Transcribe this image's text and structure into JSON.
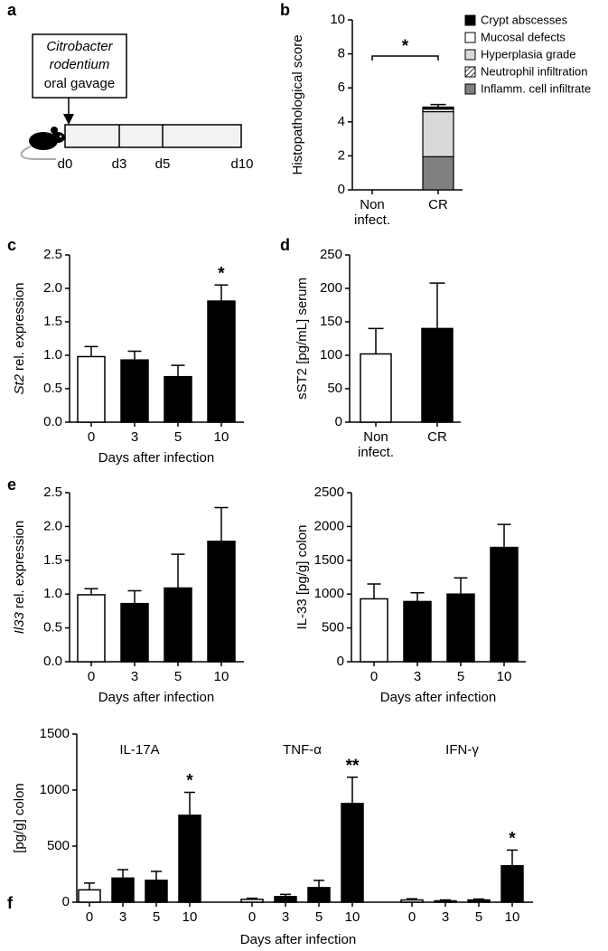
{
  "diagram": {
    "letter": "a",
    "box_italic": [
      "Citrobacter",
      "rodentium"
    ],
    "box_text": "oral gavage",
    "labels": [
      "d0",
      "d3",
      "d5",
      "d10"
    ]
  },
  "chart_data": [
    {
      "type": "stacked_bar",
      "letter": "b",
      "ylabel": "Histopathological score",
      "categories": [
        "Non infect.",
        "CR"
      ],
      "ylim": [
        0,
        10
      ],
      "yticks": [
        0,
        2,
        4,
        6,
        8,
        10
      ],
      "significance": "*",
      "series": [
        {
          "name": "Inflamm. cell infiltrate",
          "color": "#808080",
          "values": [
            0,
            1.95
          ],
          "errors": [
            null,
            0.4
          ]
        },
        {
          "name": "Neutrophil infiltration",
          "color": "#ffffff",
          "pattern": "hatch",
          "values": [
            0,
            0
          ]
        },
        {
          "name": "Hyperplasia grade",
          "color": "#d9d9d9",
          "values": [
            0,
            2.65
          ]
        },
        {
          "name": "Mucosal defects",
          "color": "#ffffff",
          "values": [
            0,
            0.15
          ]
        },
        {
          "name": "Crypt abscesses",
          "color": "#000000",
          "values": [
            0,
            0.12
          ],
          "errors": [
            null,
            0.15
          ]
        }
      ]
    },
    {
      "type": "bar",
      "letter": "c",
      "ylabel_gene": "St2",
      "ylabel": "rel. expression",
      "xlabel": "Days after infection",
      "ylim": [
        0,
        2.5
      ],
      "yticks": [
        {
          "value": 0,
          "label": "0.0"
        },
        0.5,
        {
          "value": 1,
          "label": "1.0"
        },
        1.5,
        {
          "value": 2,
          "label": "2.0"
        },
        2.5
      ],
      "groups": [
        {
          "categories": [
            "0",
            "3",
            "5",
            "10"
          ],
          "values": [
            0.98,
            0.93,
            0.68,
            1.81
          ],
          "errors": [
            0.15,
            0.13,
            0.17,
            0.24
          ],
          "significance": [
            null,
            null,
            null,
            "*"
          ],
          "bar_colors": [
            "#ffffff",
            "#000000",
            "#000000",
            "#000000"
          ]
        }
      ]
    },
    {
      "type": "bar",
      "letter": "d",
      "ylabel": "sST2 [pg/mL] serum",
      "ylim": [
        0,
        250
      ],
      "yticks": [
        0,
        50,
        100,
        150,
        200,
        250
      ],
      "groups": [
        {
          "categories": [
            "Non infect.",
            "CR"
          ],
          "values": [
            102,
            140
          ],
          "errors": [
            38,
            68
          ],
          "bar_colors": [
            "#ffffff",
            "#000000"
          ]
        }
      ]
    },
    {
      "type": "bar",
      "letter": "e",
      "ylabel_gene": "Il33",
      "ylabel": "rel. expression",
      "xlabel": "Days after infection",
      "ylim": [
        0,
        2.5
      ],
      "yticks": [
        {
          "value": 0,
          "label": "0.0"
        },
        0.5,
        {
          "value": 1,
          "label": "1.0"
        },
        1.5,
        {
          "value": 2,
          "label": "2.0"
        },
        2.5
      ],
      "groups": [
        {
          "categories": [
            "0",
            "3",
            "5",
            "10"
          ],
          "values": [
            0.99,
            0.86,
            1.09,
            1.78
          ],
          "errors": [
            0.09,
            0.19,
            0.5,
            0.5
          ],
          "bar_colors": [
            "#ffffff",
            "#000000",
            "#000000",
            "#000000"
          ]
        }
      ]
    },
    {
      "type": "bar",
      "ylabel": "IL-33 [pg/g] colon",
      "xlabel": "Days after infection",
      "ylim": [
        0,
        2500
      ],
      "yticks": [
        0,
        500,
        1000,
        1500,
        2000,
        2500
      ],
      "groups": [
        {
          "categories": [
            "0",
            "3",
            "5",
            "10"
          ],
          "values": [
            930,
            890,
            1000,
            1690
          ],
          "errors": [
            220,
            130,
            240,
            340
          ],
          "bar_colors": [
            "#ffffff",
            "#000000",
            "#000000",
            "#000000"
          ]
        }
      ]
    },
    {
      "type": "bar",
      "letter": "f",
      "ylabel": "[pg/g] colon",
      "xlabel": "Days after infection",
      "ylim": [
        0,
        1500
      ],
      "yticks": [
        0,
        500,
        1000,
        1500
      ],
      "groups": [
        {
          "title": "IL-17A",
          "categories": [
            "0",
            "3",
            "5",
            "10"
          ],
          "values": [
            110,
            215,
            195,
            775
          ],
          "errors": [
            60,
            75,
            80,
            205
          ],
          "significance": [
            null,
            null,
            null,
            "*"
          ],
          "bar_colors": [
            "#ffffff",
            "#000000",
            "#000000",
            "#000000"
          ]
        },
        {
          "title": "TNF-α",
          "categories": [
            "0",
            "3",
            "5",
            "10"
          ],
          "values": [
            25,
            50,
            130,
            880
          ],
          "errors": [
            10,
            20,
            65,
            235
          ],
          "significance": [
            null,
            null,
            null,
            "**"
          ],
          "bar_colors": [
            "#ffffff",
            "#000000",
            "#000000",
            "#000000"
          ]
        },
        {
          "title": "IFN-γ",
          "categories": [
            "0",
            "3",
            "5",
            "10"
          ],
          "values": [
            20,
            12,
            20,
            325
          ],
          "errors": [
            10,
            8,
            8,
            140
          ],
          "significance": [
            null,
            null,
            null,
            "*"
          ],
          "bar_colors": [
            "#ffffff",
            "#000000",
            "#000000",
            "#000000"
          ]
        }
      ]
    }
  ]
}
